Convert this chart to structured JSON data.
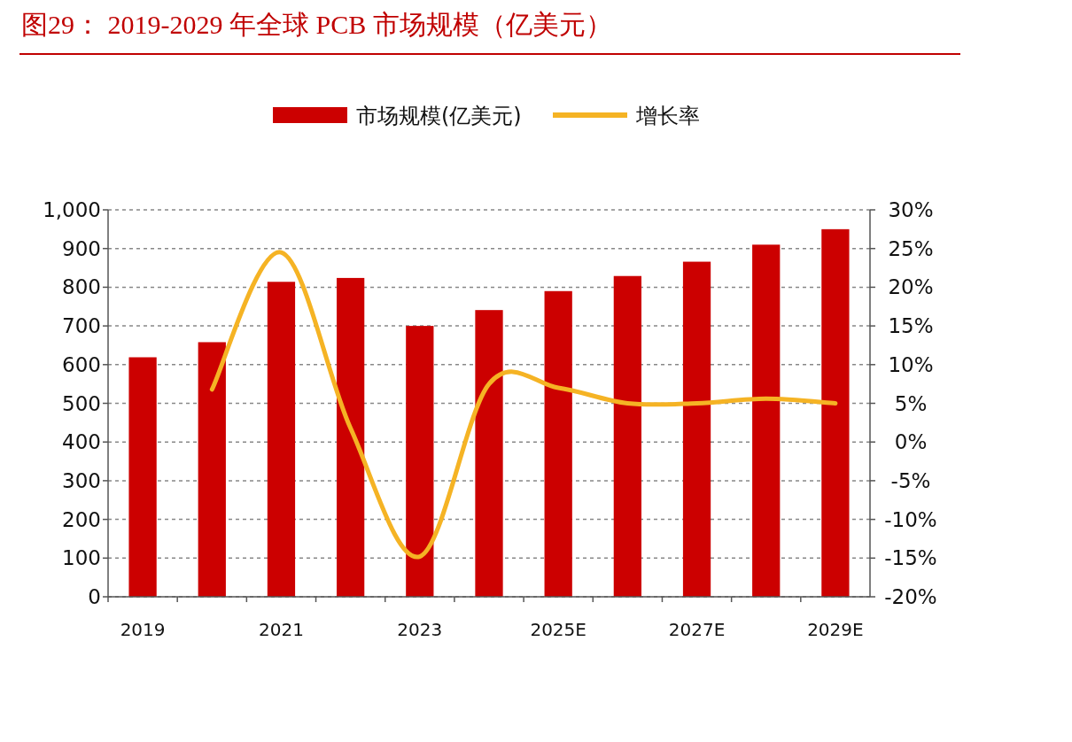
{
  "chart_data": {
    "type": "bar",
    "title": "图29：  2019-2029 年全球 PCB 市场规模（亿美元）",
    "categories": [
      "2019",
      null,
      "2021",
      null,
      "2023",
      null,
      "2025E",
      null,
      "2027E",
      null,
      "2029E"
    ],
    "series": [
      {
        "name": "市场规模(亿美元)",
        "color": "#cc0000",
        "values": [
          619,
          658,
          814,
          824,
          700,
          741,
          790,
          829,
          866,
          910,
          950
        ]
      },
      {
        "name": "增长率",
        "type": "line",
        "axis": "y2",
        "color": "#f5b324",
        "values": [
          null,
          6.8,
          24.5,
          1.8,
          -14.8,
          7.5,
          7.0,
          5.0,
          5.0,
          5.6,
          5.0
        ]
      }
    ],
    "ylim": [
      0,
      1000
    ],
    "yticks": [
      0,
      100,
      200,
      300,
      400,
      500,
      600,
      700,
      800,
      900,
      {
        "value": 1000,
        "label": "1,000"
      }
    ],
    "y2lim": [
      -20,
      30
    ],
    "y2ticks": [
      {
        "value": -20,
        "label": "-20%"
      },
      {
        "value": -15,
        "label": "-15%"
      },
      {
        "value": -10,
        "label": "-10%"
      },
      {
        "value": -5,
        "label": "-5%"
      },
      {
        "value": 0,
        "label": "0%"
      },
      {
        "value": 5,
        "label": "5%"
      },
      {
        "value": 10,
        "label": "10%"
      },
      {
        "value": 15,
        "label": "15%"
      },
      {
        "value": 20,
        "label": "20%"
      },
      {
        "value": 25,
        "label": "25%"
      },
      {
        "value": 30,
        "label": "30%"
      }
    ],
    "grid": "y",
    "legend": "top"
  }
}
